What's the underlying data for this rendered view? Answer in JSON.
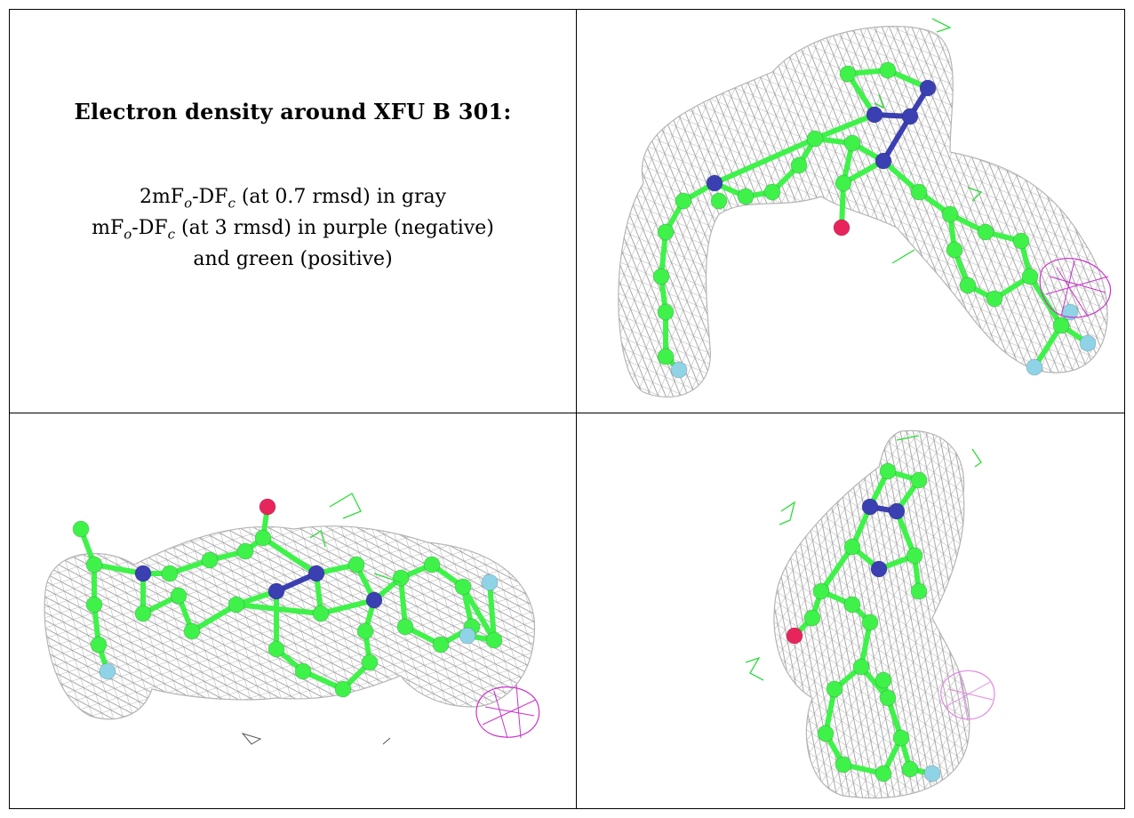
{
  "caption": {
    "title": "Electron density around XFU B 301:",
    "line1": {
      "prefix": "2mF",
      "sub_o": "o",
      "mid": "-DF",
      "sub_c": "c",
      "suffix": " (at 0.7 rmsd) in gray"
    },
    "line2": {
      "prefix": "mF",
      "sub_o": "o",
      "mid": "-DF",
      "sub_c": "c",
      "suffix": " (at 3 rmsd) in purple (negative)"
    },
    "line3": "and green (positive)"
  },
  "colors": {
    "mesh_gray": "#9a9a9a",
    "carbon_green": "#3ff24a",
    "nitrogen_blue": "#3a3fb2",
    "oxygen_red": "#e8245c",
    "fluorine_cyan": "#8fd3e6",
    "positive_green": "#2ddc3a",
    "negative_purple": "#cc33cc"
  },
  "panels": [
    {
      "name": "density-view-top-right",
      "molecule": "XFU B 301"
    },
    {
      "name": "density-view-bottom-left",
      "molecule": "XFU B 301"
    },
    {
      "name": "density-view-bottom-right",
      "molecule": "XFU B 301"
    }
  ]
}
